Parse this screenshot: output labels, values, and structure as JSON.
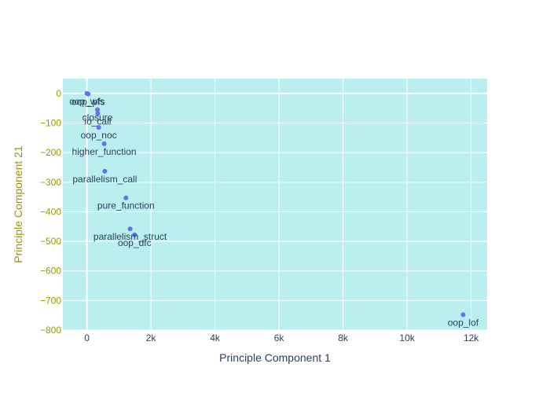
{
  "chart_data": {
    "type": "scatter",
    "title": "",
    "xlabel": "Principle Component 1",
    "ylabel": "Principle Component 21",
    "xlim": [
      -750,
      12500
    ],
    "ylim": [
      -800,
      50
    ],
    "x_ticks": [
      0,
      2000,
      4000,
      6000,
      8000,
      10000,
      12000
    ],
    "x_tick_labels": [
      "0",
      "2k",
      "4k",
      "6k",
      "8k",
      "10k",
      "12k"
    ],
    "y_ticks": [
      0,
      -100,
      -200,
      -300,
      -400,
      -500,
      -600,
      -700,
      -800
    ],
    "y_tick_labels": [
      "0",
      "−100",
      "−200",
      "−300",
      "−400",
      "−500",
      "−600",
      "−700",
      "−800"
    ],
    "grid": true,
    "series": [
      {
        "points": [
          {
            "label": "oop_wfs",
            "x": 0,
            "y": 0
          },
          {
            "label": "oop_pfs",
            "x": 40,
            "y": -2
          },
          {
            "label": "closure",
            "x": 330,
            "y": -55
          },
          {
            "label": "io_call",
            "x": 340,
            "y": -68
          },
          {
            "label": "oop_noc",
            "x": 370,
            "y": -115
          },
          {
            "label": "higher_function",
            "x": 540,
            "y": -170
          },
          {
            "label": "parallelism_call",
            "x": 560,
            "y": -263
          },
          {
            "label": "pure_function",
            "x": 1220,
            "y": -353
          },
          {
            "label": "parallelism_struct",
            "x": 1350,
            "y": -458
          },
          {
            "label": "oop_dfc",
            "x": 1490,
            "y": -478
          },
          {
            "label": "oop_lof",
            "x": 11750,
            "y": -748
          }
        ]
      }
    ]
  },
  "colors": {
    "plot_background": "#bbeeee",
    "grid": "#ffffff",
    "marker": "#636efa",
    "y_axis_text": "#999900",
    "x_axis_text": "#2a3f5f"
  }
}
